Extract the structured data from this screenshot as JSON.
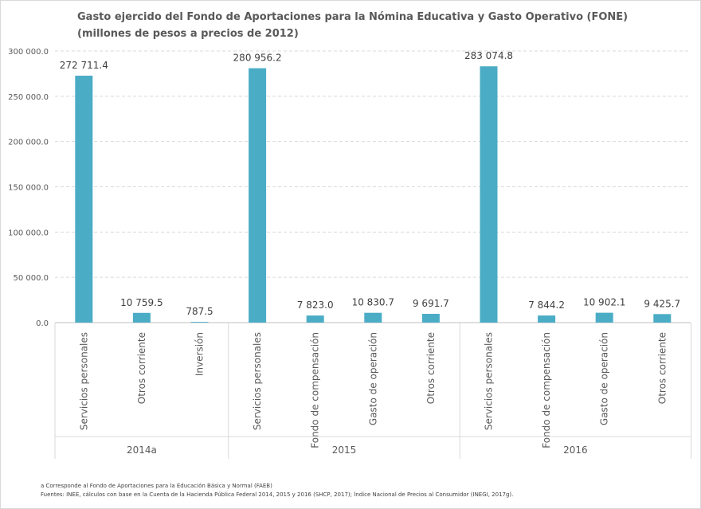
{
  "chart_data": {
    "type": "bar",
    "title": "Gasto ejercido del Fondo de Aportaciones para la Nómina Educativa y Gasto Operativo (FONE) (millones de pesos a precios de 2012)",
    "ylim": [
      0,
      300000
    ],
    "yticks": [
      "0.0",
      "50 000.0",
      "100 000.0",
      "150 000.0",
      "200 000.0",
      "250 000.0",
      "300 000.0"
    ],
    "grid": true,
    "bar_color": "#4bacc6",
    "groups": [
      {
        "name": "2014a",
        "categories": [
          "Servicios personales",
          "Otros corriente",
          "Inversión"
        ],
        "values": [
          272711.4,
          10759.5,
          787.5
        ],
        "labels": [
          "272 711.4",
          "10 759.5",
          "787.5"
        ]
      },
      {
        "name": "2015",
        "categories": [
          "Servicios personales",
          "Fondo de compensación",
          "Gasto de operación",
          "Otros corriente"
        ],
        "values": [
          280956.2,
          7823.0,
          10830.7,
          9691.7
        ],
        "labels": [
          "280 956.2",
          "7 823.0",
          "10 830.7",
          "9 691.7"
        ]
      },
      {
        "name": "2016",
        "categories": [
          "Servicios personales",
          "Fondo de compensación",
          "Gasto de operación",
          "Otros corriente"
        ],
        "values": [
          283074.8,
          7844.2,
          10902.1,
          9425.7
        ],
        "labels": [
          "283 074.8",
          "7 844.2",
          "10 902.1",
          "9 425.7"
        ]
      }
    ]
  },
  "footnotes": {
    "note_a": "a Corresponde al Fondo de Aportaciones  para la Educación  Básica y Normal (FAEB)",
    "sources": "Fuentes:  INEE,  cálculos con base en la Cuenta de la Hacienda Pública Federal  2014, 2015 y 2016 (SHCP, 2017); Índice Nacional de Precios  al Consumidor (INEGI, 2017g)."
  }
}
